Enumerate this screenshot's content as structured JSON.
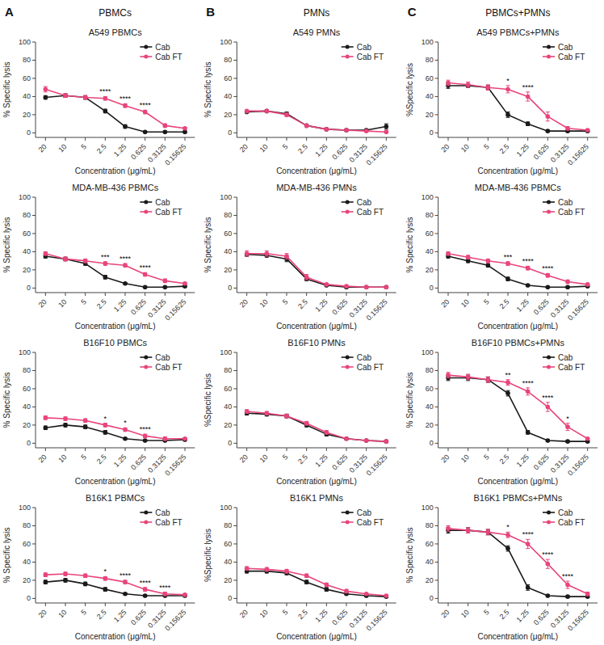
{
  "chart_data": [
    {
      "type": "line",
      "panel_label": "A",
      "column_header": "PBMCs",
      "title": "A549 PBMCs",
      "x_label": "Concentration (μg/mL)",
      "y_label": "% Specific lysis",
      "categories": [
        "20",
        "10",
        "5",
        "2.5",
        "1.25",
        "0.625",
        "0.3125",
        "0.15625"
      ],
      "series": [
        {
          "name": "Cab",
          "color": "#1a1a1a",
          "marker": "circle",
          "values": [
            39,
            41,
            39,
            24,
            7,
            1,
            1,
            1
          ],
          "errors": [
            2,
            2,
            2,
            2,
            2,
            1,
            1,
            1
          ]
        },
        {
          "name": "Cab FT",
          "color": "#e8457a",
          "marker": "circle",
          "values": [
            48,
            41,
            39,
            38,
            30,
            23,
            8,
            5
          ],
          "errors": [
            3,
            2,
            2,
            2,
            2,
            2,
            2,
            1
          ]
        }
      ],
      "annotations": [
        {
          "x": "2.5",
          "text": "****"
        },
        {
          "x": "1.25",
          "text": "****"
        },
        {
          "x": "0.625",
          "text": "****"
        }
      ],
      "ylim": [
        -5,
        100
      ],
      "yticks": [
        0,
        20,
        40,
        60,
        80,
        100
      ],
      "grid": false,
      "legend": "upper right"
    },
    {
      "type": "line",
      "panel_label": "B",
      "column_header": "PMNs",
      "title": "A549 PMNs",
      "x_label": "Concentration (μg/mL)",
      "y_label": "% Specific lysis",
      "categories": [
        "20",
        "10",
        "5",
        "2.5",
        "1.25",
        "0.625",
        "0.3125",
        "0.15625"
      ],
      "series": [
        {
          "name": "Cab",
          "color": "#1a1a1a",
          "marker": "circle",
          "values": [
            23,
            24,
            21,
            8,
            4,
            3,
            3,
            7
          ],
          "errors": [
            1,
            1,
            2,
            1,
            1,
            1,
            1,
            3
          ]
        },
        {
          "name": "Cab FT",
          "color": "#e8457a",
          "marker": "circle",
          "values": [
            24,
            24,
            20,
            8,
            4,
            3,
            2,
            1
          ],
          "errors": [
            1,
            1,
            2,
            1,
            1,
            1,
            1,
            1
          ]
        }
      ],
      "ylim": [
        -5,
        100
      ],
      "yticks": [
        0,
        20,
        40,
        60,
        80,
        100
      ],
      "grid": false,
      "legend": "upper right"
    },
    {
      "type": "line",
      "panel_label": "C",
      "column_header": "PBMCs+PMNs",
      "title": "A549 PBMCs+PMNs",
      "x_label": "Concentration (μg/mL)",
      "y_label": "%Specific lysis",
      "categories": [
        "20",
        "10",
        "5",
        "2.5",
        "1.25",
        "0.625",
        "0.3125",
        "0.15625"
      ],
      "series": [
        {
          "name": "Cab",
          "color": "#1a1a1a",
          "marker": "circle",
          "values": [
            52,
            52,
            50,
            20,
            10,
            2,
            2,
            2
          ],
          "errors": [
            3,
            2,
            2,
            3,
            2,
            1,
            1,
            1
          ]
        },
        {
          "name": "Cab FT",
          "color": "#e8457a",
          "marker": "circle",
          "values": [
            55,
            53,
            50,
            48,
            40,
            18,
            5,
            3
          ],
          "errors": [
            3,
            3,
            3,
            4,
            5,
            5,
            2,
            1
          ]
        }
      ],
      "annotations": [
        {
          "x": "2.5",
          "text": "*"
        },
        {
          "x": "1.25",
          "text": "****"
        }
      ],
      "ylim": [
        -5,
        100
      ],
      "yticks": [
        0,
        20,
        40,
        60,
        80,
        100
      ],
      "grid": false,
      "legend": "upper right"
    },
    {
      "type": "line",
      "title": "MDA-MB-436 PBMCs",
      "x_label": "Concentration (μg/mL)",
      "y_label": "% Specific lysis",
      "categories": [
        "20",
        "10",
        "5",
        "2.5",
        "1.25",
        "0.625",
        "0.3125",
        "0.15625"
      ],
      "series": [
        {
          "name": "Cab",
          "color": "#1a1a1a",
          "marker": "circle",
          "values": [
            35,
            32,
            27,
            12,
            5,
            1,
            1,
            2
          ],
          "errors": [
            2,
            2,
            2,
            2,
            1,
            1,
            1,
            1
          ]
        },
        {
          "name": "Cab FT",
          "color": "#e8457a",
          "marker": "circle",
          "values": [
            38,
            32,
            30,
            27,
            25,
            15,
            8,
            5
          ],
          "errors": [
            2,
            2,
            2,
            2,
            2,
            2,
            2,
            1
          ]
        }
      ],
      "annotations": [
        {
          "x": "2.5",
          "text": "***"
        },
        {
          "x": "1.25",
          "text": "****"
        },
        {
          "x": "0.625",
          "text": "****"
        }
      ],
      "ylim": [
        -5,
        100
      ],
      "yticks": [
        0,
        20,
        40,
        60,
        80,
        100
      ],
      "grid": false,
      "legend": "upper right"
    },
    {
      "type": "line",
      "title": "MDA-MB-436 PMNs",
      "x_label": "Concentration (μg/mL)",
      "y_label": "% Specific lysis",
      "categories": [
        "20",
        "10",
        "5",
        "2.5",
        "1.25",
        "0.625",
        "0.3125",
        "0.15625"
      ],
      "series": [
        {
          "name": "Cab",
          "color": "#1a1a1a",
          "marker": "circle",
          "values": [
            37,
            36,
            32,
            10,
            3,
            1,
            1,
            1
          ],
          "errors": [
            2,
            2,
            3,
            2,
            1,
            1,
            1,
            1
          ]
        },
        {
          "name": "Cab FT",
          "color": "#e8457a",
          "marker": "circle",
          "values": [
            38,
            38,
            35,
            12,
            4,
            2,
            1,
            1
          ],
          "errors": [
            3,
            3,
            3,
            3,
            1,
            1,
            1,
            1
          ]
        }
      ],
      "ylim": [
        -5,
        100
      ],
      "yticks": [
        0,
        20,
        40,
        60,
        80,
        100
      ],
      "grid": false,
      "legend": "upper right"
    },
    {
      "type": "line",
      "title": "MDA-MB-436 PBMCs",
      "x_label": "Concentration (μg/mL)",
      "y_label": "% Specific lysis",
      "categories": [
        "20",
        "10",
        "5",
        "2.5",
        "1.25",
        "0.625",
        "0.3125",
        "0.15625"
      ],
      "series": [
        {
          "name": "Cab",
          "color": "#1a1a1a",
          "marker": "circle",
          "values": [
            35,
            30,
            25,
            10,
            3,
            1,
            1,
            2
          ],
          "errors": [
            2,
            2,
            2,
            2,
            1,
            1,
            1,
            1
          ]
        },
        {
          "name": "Cab FT",
          "color": "#e8457a",
          "marker": "circle",
          "values": [
            38,
            34,
            30,
            27,
            22,
            14,
            7,
            4
          ],
          "errors": [
            2,
            2,
            2,
            2,
            2,
            2,
            2,
            1
          ]
        }
      ],
      "annotations": [
        {
          "x": "2.5",
          "text": "***"
        },
        {
          "x": "1.25",
          "text": "****"
        },
        {
          "x": "0.625",
          "text": "****"
        }
      ],
      "ylim": [
        -5,
        100
      ],
      "yticks": [
        0,
        20,
        40,
        60,
        80,
        100
      ],
      "grid": false,
      "legend": "upper right"
    },
    {
      "type": "line",
      "title": "B16F10 PBMCs",
      "x_label": "Concentration (μg/mL)",
      "y_label": "% Specific lysis",
      "categories": [
        "20",
        "10",
        "5",
        "2.5",
        "1.25",
        "0.625",
        "0.3125",
        "0.15625"
      ],
      "series": [
        {
          "name": "Cab",
          "color": "#1a1a1a",
          "marker": "circle",
          "values": [
            17,
            20,
            18,
            12,
            5,
            3,
            3,
            4
          ],
          "errors": [
            2,
            2,
            2,
            2,
            1,
            1,
            1,
            1
          ]
        },
        {
          "name": "Cab FT",
          "color": "#e8457a",
          "marker": "circle",
          "values": [
            28,
            27,
            25,
            20,
            15,
            8,
            5,
            5
          ],
          "errors": [
            2,
            2,
            2,
            2,
            2,
            2,
            2,
            1
          ]
        }
      ],
      "annotations": [
        {
          "x": "2.5",
          "text": "*"
        },
        {
          "x": "1.25",
          "text": "*"
        },
        {
          "x": "0.625",
          "text": "****"
        }
      ],
      "ylim": [
        -5,
        100
      ],
      "yticks": [
        0,
        20,
        40,
        60,
        80,
        100
      ],
      "grid": false,
      "legend": "upper right"
    },
    {
      "type": "line",
      "title": "B16F10 PMNs",
      "x_label": "Concentration (μg/mL)",
      "y_label": "%Specific lysis",
      "categories": [
        "20",
        "10",
        "5",
        "2.5",
        "1.25",
        "0.625",
        "0.3125",
        "0.15625"
      ],
      "series": [
        {
          "name": "Cab",
          "color": "#1a1a1a",
          "marker": "circle",
          "values": [
            33,
            32,
            30,
            20,
            10,
            5,
            3,
            2
          ],
          "errors": [
            2,
            2,
            2,
            2,
            2,
            1,
            1,
            1
          ]
        },
        {
          "name": "Cab FT",
          "color": "#e8457a",
          "marker": "circle",
          "values": [
            35,
            33,
            30,
            22,
            12,
            5,
            3,
            2
          ],
          "errors": [
            2,
            2,
            2,
            2,
            2,
            1,
            1,
            1
          ]
        }
      ],
      "ylim": [
        -5,
        100
      ],
      "yticks": [
        0,
        20,
        40,
        60,
        80,
        100
      ],
      "grid": false,
      "legend": "upper right"
    },
    {
      "type": "line",
      "title": "B16F10 PBMCs+PMNs",
      "x_label": "Concentration (μg/mL)",
      "y_label": "% Specific lysis",
      "categories": [
        "20",
        "10",
        "5",
        "2.5",
        "1.25",
        "0.625",
        "0.3125",
        "0.15625"
      ],
      "series": [
        {
          "name": "Cab",
          "color": "#1a1a1a",
          "marker": "circle",
          "values": [
            72,
            72,
            70,
            55,
            12,
            3,
            2,
            2
          ],
          "errors": [
            3,
            3,
            3,
            3,
            2,
            1,
            1,
            1
          ]
        },
        {
          "name": "Cab FT",
          "color": "#e8457a",
          "marker": "circle",
          "values": [
            75,
            73,
            70,
            67,
            57,
            40,
            18,
            5
          ],
          "errors": [
            3,
            3,
            3,
            3,
            4,
            5,
            4,
            1
          ]
        }
      ],
      "annotations": [
        {
          "x": "2.5",
          "text": "**"
        },
        {
          "x": "1.25",
          "text": "****"
        },
        {
          "x": "0.625",
          "text": "****"
        },
        {
          "x": "0.3125",
          "text": "*"
        }
      ],
      "ylim": [
        -5,
        100
      ],
      "yticks": [
        0,
        20,
        40,
        60,
        80,
        100
      ],
      "grid": false,
      "legend": "upper right"
    },
    {
      "type": "line",
      "title": "B16K1 PBMCs",
      "x_label": "Concentration (μg/mL)",
      "y_label": "% Specific lysis",
      "categories": [
        "20",
        "10",
        "5",
        "2.5",
        "1.25",
        "0.625",
        "0.3125",
        "0.15625"
      ],
      "series": [
        {
          "name": "Cab",
          "color": "#1a1a1a",
          "marker": "circle",
          "values": [
            18,
            20,
            16,
            10,
            5,
            3,
            3,
            3
          ],
          "errors": [
            2,
            2,
            2,
            2,
            1,
            1,
            1,
            1
          ]
        },
        {
          "name": "Cab FT",
          "color": "#e8457a",
          "marker": "circle",
          "values": [
            26,
            27,
            25,
            22,
            18,
            10,
            5,
            4
          ],
          "errors": [
            2,
            2,
            2,
            2,
            2,
            2,
            2,
            1
          ]
        }
      ],
      "annotations": [
        {
          "x": "2.5",
          "text": "*"
        },
        {
          "x": "1.25",
          "text": "****"
        },
        {
          "x": "0.625",
          "text": "****"
        },
        {
          "x": "0.3125",
          "text": "****"
        }
      ],
      "ylim": [
        -5,
        100
      ],
      "yticks": [
        0,
        20,
        40,
        60,
        80,
        100
      ],
      "grid": false,
      "legend": "upper right"
    },
    {
      "type": "line",
      "title": "B16K1 PMNs",
      "x_label": "Concentration (μg/mL)",
      "y_label": "%Specific lysis",
      "categories": [
        "20",
        "10",
        "5",
        "2.5",
        "1.25",
        "0.625",
        "0.3125",
        "0.15625"
      ],
      "series": [
        {
          "name": "Cab",
          "color": "#1a1a1a",
          "marker": "circle",
          "values": [
            30,
            30,
            28,
            18,
            10,
            5,
            3,
            2
          ],
          "errors": [
            2,
            2,
            2,
            2,
            2,
            1,
            1,
            1
          ]
        },
        {
          "name": "Cab FT",
          "color": "#e8457a",
          "marker": "circle",
          "values": [
            33,
            32,
            30,
            25,
            15,
            8,
            5,
            3
          ],
          "errors": [
            2,
            2,
            2,
            2,
            2,
            2,
            1,
            1
          ]
        }
      ],
      "ylim": [
        -5,
        100
      ],
      "yticks": [
        0,
        20,
        40,
        60,
        80,
        100
      ],
      "grid": false,
      "legend": "upper right"
    },
    {
      "type": "line",
      "title": "B16K1 PBMCs+PMNs",
      "x_label": "Concentration (μg/mL)",
      "y_label": "% Specific lysis",
      "categories": [
        "20",
        "10",
        "5",
        "2.5",
        "1.25",
        "0.625",
        "0.3125",
        "0.15625"
      ],
      "series": [
        {
          "name": "Cab",
          "color": "#1a1a1a",
          "marker": "circle",
          "values": [
            75,
            75,
            73,
            55,
            12,
            3,
            2,
            2
          ],
          "errors": [
            3,
            3,
            3,
            3,
            3,
            1,
            1,
            1
          ]
        },
        {
          "name": "Cab FT",
          "color": "#e8457a",
          "marker": "circle",
          "values": [
            77,
            75,
            73,
            70,
            60,
            38,
            15,
            5
          ],
          "errors": [
            3,
            3,
            3,
            3,
            5,
            5,
            4,
            2
          ]
        }
      ],
      "annotations": [
        {
          "x": "2.5",
          "text": "*"
        },
        {
          "x": "1.25",
          "text": "****"
        },
        {
          "x": "0.625",
          "text": "****"
        },
        {
          "x": "0.3125",
          "text": "****"
        }
      ],
      "ylim": [
        -5,
        100
      ],
      "yticks": [
        0,
        20,
        40,
        60,
        80,
        100
      ],
      "grid": false,
      "legend": "upper right"
    }
  ]
}
